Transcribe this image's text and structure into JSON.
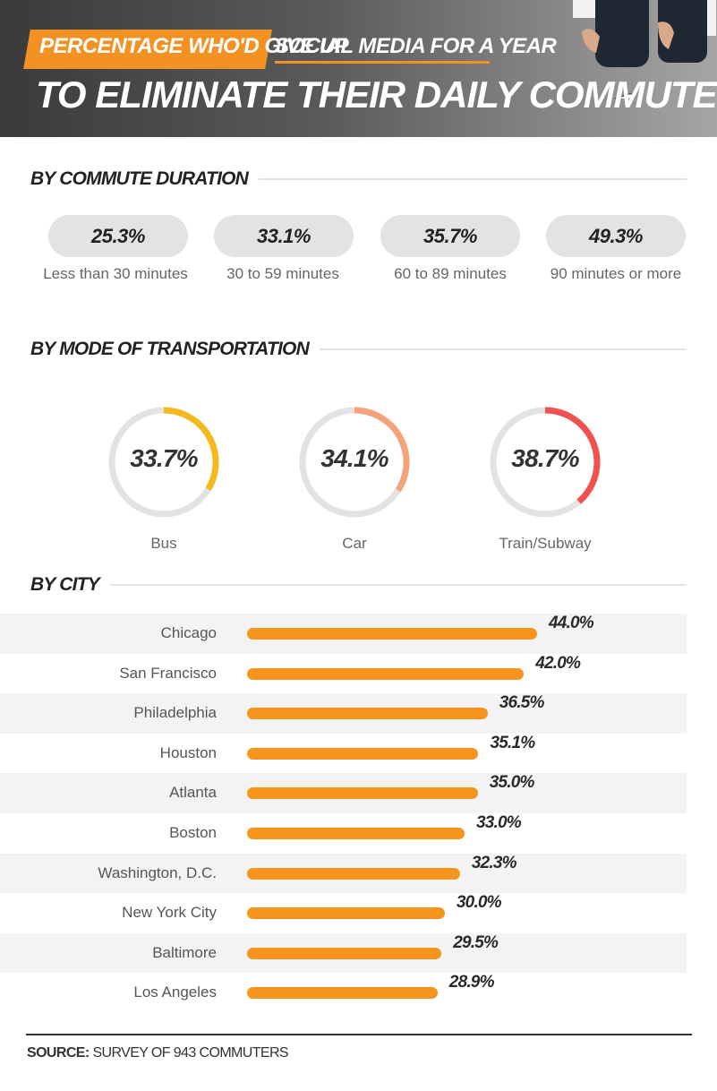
{
  "header": {
    "title_part1": "PERCENTAGE WHO'D GIVE UP",
    "title_part2": "SOCIAL MEDIA FOR A YEAR",
    "title_line2": "TO ELIMINATE THEIR DAILY COMMUTE"
  },
  "sections": {
    "duration_title": "BY COMMUTE DURATION",
    "mode_title": "BY MODE OF TRANSPORTATION",
    "city_title": "BY CITY"
  },
  "source": {
    "label": "SOURCE:",
    "text": "SURVEY OF 943 COMMUTERS"
  },
  "colors": {
    "accent": "#f39222",
    "bar": "#f7941d",
    "bus": "#f5b920",
    "car": "#f5a37c",
    "train": "#f0534f",
    "track": "#e3e3e3"
  },
  "chart_data": [
    {
      "type": "table",
      "title": "BY COMMUTE DURATION",
      "categories": [
        "Less than 30 minutes",
        "30 to 59 minutes",
        "60 to 89 minutes",
        "90 minutes or more"
      ],
      "values": [
        25.3,
        33.1,
        35.7,
        49.3
      ],
      "value_labels": [
        "25.3%",
        "33.1%",
        "35.7%",
        "49.3%"
      ]
    },
    {
      "type": "pie",
      "title": "BY MODE OF TRANSPORTATION",
      "categories": [
        "Bus",
        "Car",
        "Train/Subway"
      ],
      "values": [
        33.7,
        34.1,
        38.7
      ],
      "value_labels": [
        "33.7%",
        "34.1%",
        "38.7%"
      ]
    },
    {
      "type": "bar",
      "title": "BY CITY",
      "categories": [
        "Chicago",
        "San Francisco",
        "Philadelphia",
        "Houston",
        "Atlanta",
        "Boston",
        "Washington, D.C.",
        "New York City",
        "Baltimore",
        "Los Angeles"
      ],
      "values": [
        44.0,
        42.0,
        36.5,
        35.1,
        35.0,
        33.0,
        32.3,
        30.0,
        29.5,
        28.9
      ],
      "value_labels": [
        "44.0%",
        "42.0%",
        "36.5%",
        "35.1%",
        "35.0%",
        "33.0%",
        "32.3%",
        "30.0%",
        "29.5%",
        "28.9%"
      ],
      "orientation": "horizontal"
    }
  ]
}
